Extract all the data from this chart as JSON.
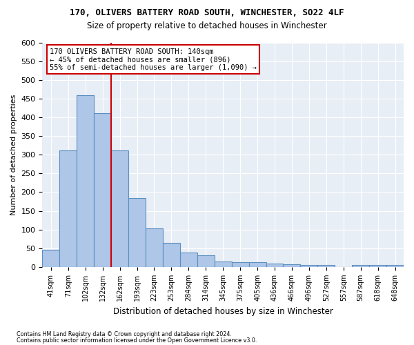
{
  "title1": "170, OLIVERS BATTERY ROAD SOUTH, WINCHESTER, SO22 4LF",
  "title2": "Size of property relative to detached houses in Winchester",
  "xlabel": "Distribution of detached houses by size in Winchester",
  "ylabel": "Number of detached properties",
  "bin_labels": [
    "41sqm",
    "71sqm",
    "102sqm",
    "132sqm",
    "162sqm",
    "193sqm",
    "223sqm",
    "253sqm",
    "284sqm",
    "314sqm",
    "345sqm",
    "375sqm",
    "405sqm",
    "436sqm",
    "466sqm",
    "496sqm",
    "527sqm",
    "557sqm",
    "587sqm",
    "618sqm",
    "648sqm"
  ],
  "bar_values": [
    46,
    311,
    459,
    411,
    311,
    185,
    104,
    65,
    38,
    31,
    14,
    12,
    12,
    10,
    8,
    5,
    5,
    0,
    5,
    5,
    5
  ],
  "bar_color": "#aec6e8",
  "bar_edge_color": "#5a8fc0",
  "ylim": [
    0,
    600
  ],
  "yticks": [
    0,
    50,
    100,
    150,
    200,
    250,
    300,
    350,
    400,
    450,
    500,
    550,
    600
  ],
  "annotation_lines": [
    "170 OLIVERS BATTERY ROAD SOUTH: 140sqm",
    "← 45% of detached houses are smaller (896)",
    "55% of semi-detached houses are larger (1,090) →"
  ],
  "footer1": "Contains HM Land Registry data © Crown copyright and database right 2024.",
  "footer2": "Contains public sector information licensed under the Open Government Licence v3.0.",
  "annotation_box_color": "#cc0000",
  "bg_color": "#e8eef6"
}
